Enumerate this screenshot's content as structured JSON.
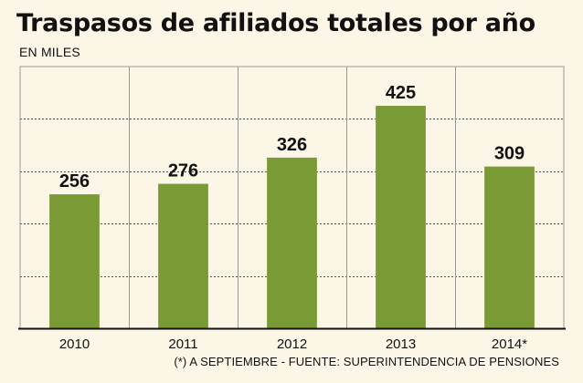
{
  "title": "Traspasos de afiliados totales por año",
  "subtitle": "EN MILES",
  "footnote": "(*) A SEPTIEMBRE - FUENTE: SUPERINTENDENCIA DE PENSIONES",
  "colors": {
    "bar": "#7a9a35",
    "background": "#fbf6e6",
    "gridline": "#555555"
  },
  "chart_data": {
    "type": "bar",
    "title": "Traspasos de afiliados totales por año",
    "subtitle": "EN MILES",
    "categories": [
      "2010",
      "2011",
      "2012",
      "2013",
      "2014*"
    ],
    "values": [
      256,
      276,
      326,
      425,
      309
    ],
    "data_labels": [
      "256",
      "276",
      "326",
      "425",
      "309"
    ],
    "xlabel": "",
    "ylabel": "",
    "ylim": [
      0,
      500
    ],
    "grid": "horizontal dashed + vertical category separators",
    "legend": "none"
  }
}
